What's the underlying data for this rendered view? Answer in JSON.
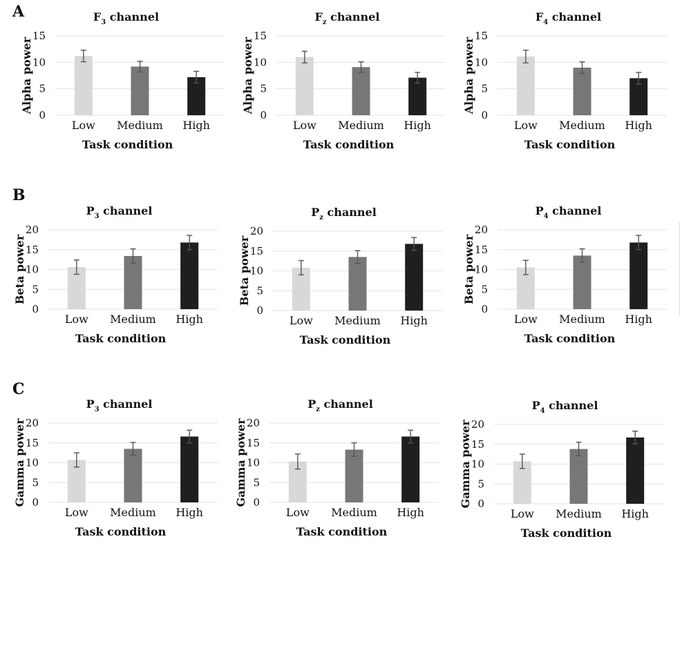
{
  "panels": [
    {
      "letter": "A"
    },
    {
      "letter": "B"
    },
    {
      "letter": "C"
    }
  ],
  "colors": {
    "Low": "#d7d9d9",
    "Medium": "#767878",
    "High": "#1f1f1f"
  },
  "chart_data": [
    {
      "type": "bar",
      "title_main": "F",
      "title_sub": "3",
      "title_rest": " channel",
      "categories": [
        "Low",
        "Medium",
        "High"
      ],
      "values": [
        11.2,
        9.2,
        7.2
      ],
      "errors": [
        1.1,
        1.0,
        1.1
      ],
      "xlabel": "Task condition",
      "ylabel": "Alpha power",
      "ylim": [
        0,
        15
      ],
      "yticks": [
        0,
        5,
        10,
        15
      ],
      "grid": true
    },
    {
      "type": "bar",
      "title_main": "F",
      "title_sub": "z",
      "title_rest": " channel",
      "categories": [
        "Low",
        "Medium",
        "High"
      ],
      "values": [
        11.0,
        9.1,
        7.1
      ],
      "errors": [
        1.1,
        1.0,
        1.0
      ],
      "xlabel": "Task condition",
      "ylabel": "Alpha power",
      "ylim": [
        0,
        15
      ],
      "yticks": [
        0,
        5,
        10,
        15
      ],
      "grid": true
    },
    {
      "type": "bar",
      "title_main": "F",
      "title_sub": "4",
      "title_rest": " channel",
      "categories": [
        "Low",
        "Medium",
        "High"
      ],
      "values": [
        11.1,
        9.0,
        7.0
      ],
      "errors": [
        1.2,
        1.1,
        1.1
      ],
      "xlabel": "Task condition",
      "ylabel": "Alpha power",
      "ylim": [
        0,
        15
      ],
      "yticks": [
        0,
        5,
        10,
        15
      ],
      "grid": true
    },
    {
      "type": "bar",
      "title_main": "P",
      "title_sub": "3",
      "title_rest": " channel",
      "categories": [
        "Low",
        "Medium",
        "High"
      ],
      "values": [
        10.6,
        13.4,
        16.8
      ],
      "errors": [
        1.8,
        1.8,
        1.8
      ],
      "xlabel": "Task condition",
      "ylabel": "Beta power",
      "ylim": [
        0,
        20
      ],
      "yticks": [
        0,
        5,
        10,
        15,
        20
      ],
      "grid": true
    },
    {
      "type": "bar",
      "title_main": "P",
      "title_sub": "z",
      "title_rest": " channel",
      "categories": [
        "Low",
        "Medium",
        "High"
      ],
      "values": [
        10.8,
        13.5,
        16.8
      ],
      "errors": [
        1.8,
        1.6,
        1.6
      ],
      "xlabel": "Task condition",
      "ylabel": "Beta power",
      "ylim": [
        0,
        20
      ],
      "yticks": [
        0,
        5,
        10,
        15,
        20
      ],
      "grid": true
    },
    {
      "type": "bar",
      "title_main": "P",
      "title_sub": "4",
      "title_rest": " channel",
      "categories": [
        "Low",
        "Medium",
        "High"
      ],
      "values": [
        10.5,
        13.5,
        16.8
      ],
      "errors": [
        1.8,
        1.7,
        1.8
      ],
      "xlabel": "Task condition",
      "ylabel": "Beta power",
      "ylim": [
        0,
        20
      ],
      "yticks": [
        0,
        5,
        10,
        15,
        20
      ],
      "grid": true
    },
    {
      "type": "bar",
      "title_main": "P",
      "title_sub": "3",
      "title_rest": " channel",
      "categories": [
        "Low",
        "Medium",
        "High"
      ],
      "values": [
        10.7,
        13.5,
        16.6
      ],
      "errors": [
        1.8,
        1.6,
        1.6
      ],
      "xlabel": "Task condition",
      "ylabel": "Gamma power",
      "ylim": [
        0,
        20
      ],
      "yticks": [
        0,
        5,
        10,
        15,
        20
      ],
      "grid": true
    },
    {
      "type": "bar",
      "title_main": "P",
      "title_sub": "z",
      "title_rest": " channel",
      "categories": [
        "Low",
        "Medium",
        "High"
      ],
      "values": [
        10.3,
        13.3,
        16.6
      ],
      "errors": [
        1.9,
        1.7,
        1.6
      ],
      "xlabel": "Task condition",
      "ylabel": "Gamma power",
      "ylim": [
        0,
        20
      ],
      "yticks": [
        0,
        5,
        10,
        15,
        20
      ],
      "grid": true
    },
    {
      "type": "bar",
      "title_main": "P",
      "title_sub": "4",
      "title_rest": " channel",
      "categories": [
        "Low",
        "Medium",
        "High"
      ],
      "values": [
        10.7,
        13.8,
        16.7
      ],
      "errors": [
        1.8,
        1.7,
        1.6
      ],
      "xlabel": "Task condition",
      "ylabel": "Gamma power",
      "ylim": [
        0,
        20
      ],
      "yticks": [
        0,
        5,
        10,
        15,
        20
      ],
      "grid": true
    }
  ]
}
